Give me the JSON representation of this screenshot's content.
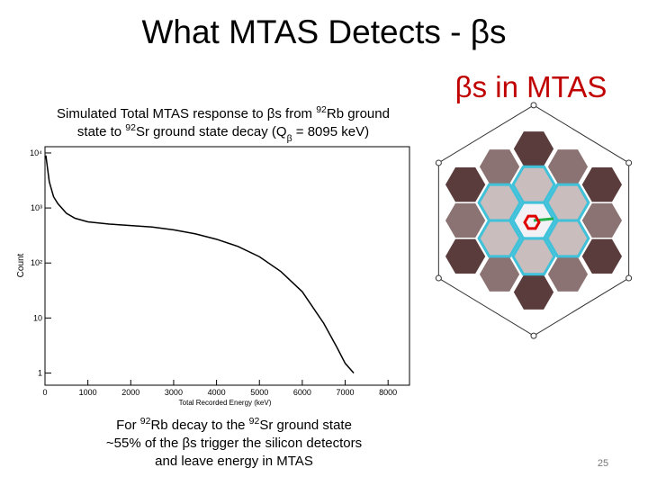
{
  "title": "What MTAS Detects - βs",
  "heading": "βs in MTAS",
  "caption": [
    [
      {
        "text": "Simulated Total MTAS response to βs from "
      },
      {
        "text": "92",
        "script": "sup"
      },
      {
        "text": "Rb ground"
      }
    ],
    [
      {
        "text": "state to "
      },
      {
        "text": "92",
        "script": "sup"
      },
      {
        "text": "Sr ground state decay (Q"
      },
      {
        "text": "β",
        "script": "sub"
      },
      {
        "text": " = 8095 keV)"
      }
    ]
  ],
  "note": [
    [
      {
        "text": "For "
      },
      {
        "text": "92",
        "script": "sup"
      },
      {
        "text": "Rb decay to the "
      },
      {
        "text": "92",
        "script": "sup"
      },
      {
        "text": "Sr ground state"
      }
    ],
    [
      {
        "text": "~55% of the βs trigger the silicon detectors"
      }
    ],
    [
      {
        "text": "and leave energy in MTAS"
      }
    ]
  ],
  "page_number": "25",
  "chart_data": {
    "type": "line",
    "xlabel": "Total Recorded Energy (keV)",
    "ylabel": "Count",
    "x": [
      20,
      100,
      200,
      300,
      500,
      700,
      1000,
      1500,
      2000,
      2500,
      3000,
      3500,
      4000,
      4500,
      5000,
      5500,
      6000,
      6500,
      6800,
      7000,
      7200
    ],
    "series": [
      {
        "color": "#000000",
        "values": [
          9000,
          3000,
          1600,
          1200,
          800,
          650,
          560,
          510,
          480,
          450,
          400,
          340,
          270,
          200,
          130,
          70,
          30,
          8,
          3,
          1.5,
          1
        ]
      }
    ],
    "xlim": [
      0,
      8500
    ],
    "xticks": [
      0,
      1000,
      2000,
      3000,
      4000,
      5000,
      6000,
      7000,
      8000
    ],
    "ylim": [
      0.6,
      13000
    ],
    "ylog": true,
    "yticks": [
      1,
      10,
      {
        "value": 100,
        "label": "10²"
      },
      {
        "value": 1000,
        "label": "10³"
      },
      {
        "value": 10000,
        "label": "10⁴"
      }
    ]
  }
}
